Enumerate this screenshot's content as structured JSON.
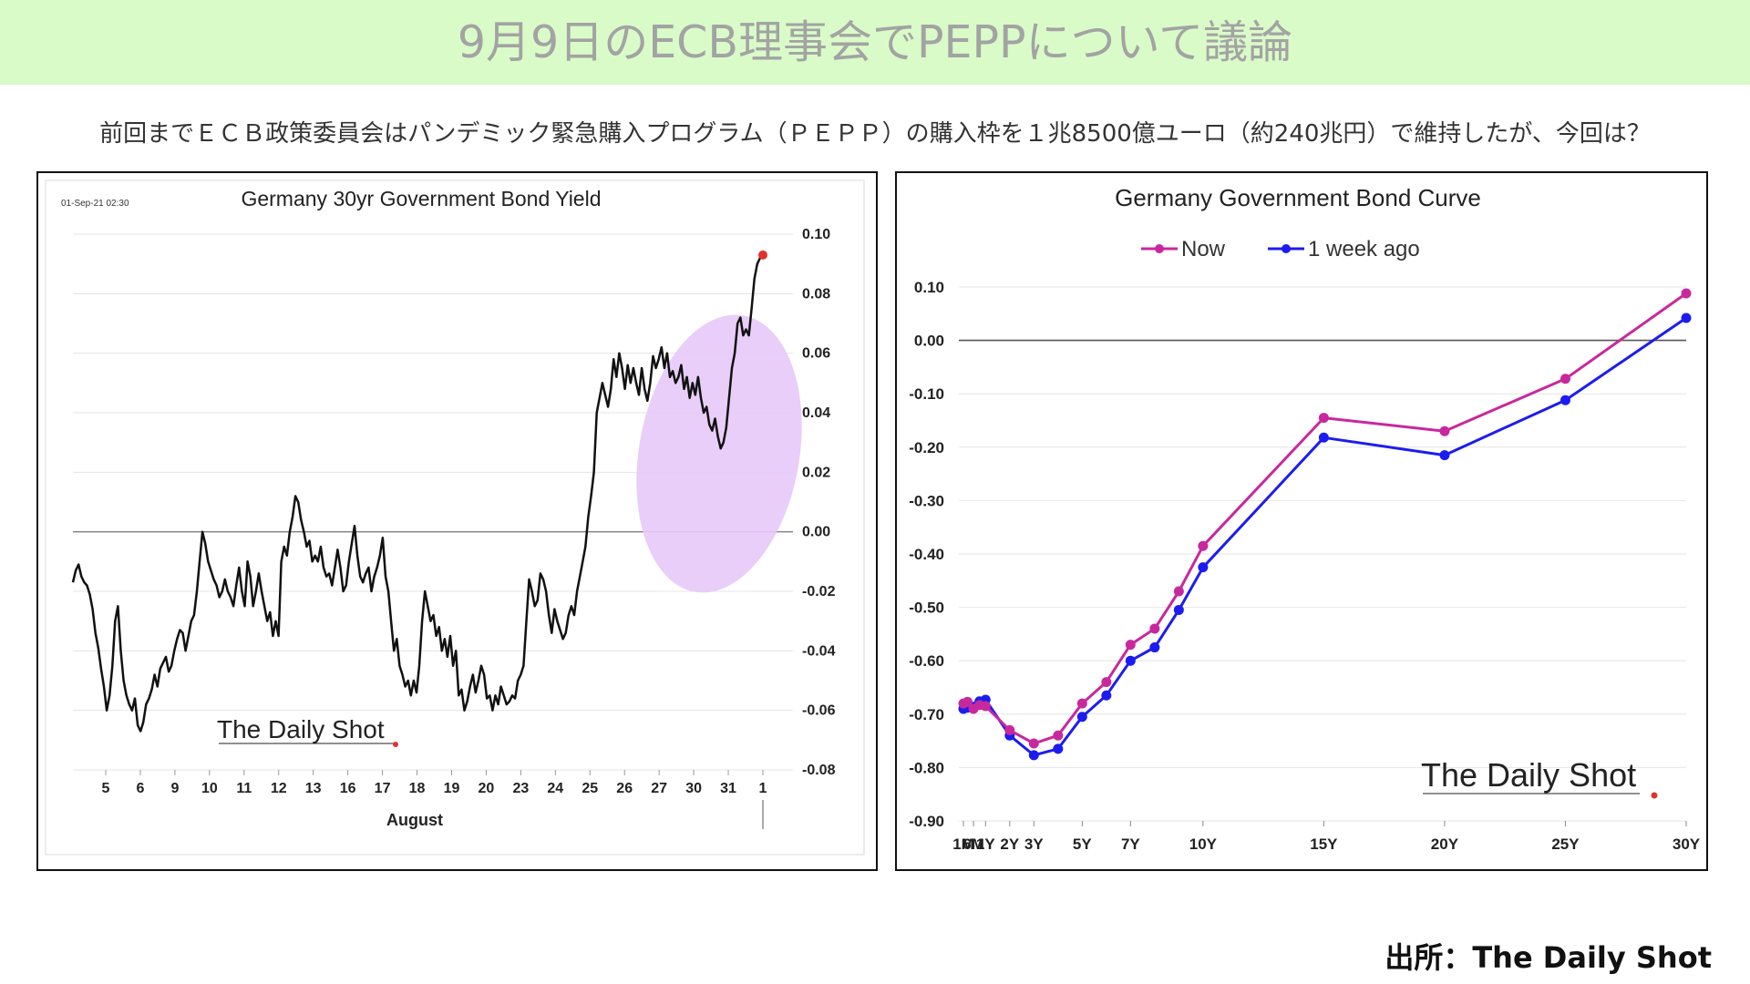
{
  "header": {
    "title": "9月9日のECB理事会でPEPPについて議論"
  },
  "subtitle": "前回までＥＣＢ政策委員会はパンデミック緊急購入プログラム（ＰＥＰＰ）の購入枠を１兆8500億ユーロ（約240兆円）で維持したが、今回は？",
  "source": "出所：The Daily Shot",
  "chart_data": [
    {
      "type": "line",
      "title": "Germany 30yr Government Bond Yield",
      "timestamp": "01-Sep-21 02:30",
      "xlabel": "August",
      "x_ticks": [
        "5",
        "6",
        "9",
        "10",
        "11",
        "12",
        "13",
        "16",
        "17",
        "18",
        "19",
        "20",
        "23",
        "24",
        "25",
        "26",
        "27",
        "30",
        "31",
        "1"
      ],
      "ylim": [
        -0.08,
        0.1
      ],
      "y_ticks": [
        "0.10",
        "0.08",
        "0.06",
        "0.04",
        "0.02",
        "0.00",
        "-0.02",
        "-0.04",
        "-0.06",
        "-0.08"
      ],
      "watermark": "The Daily Shot",
      "grid": true,
      "highlight": "last-points-ellipse",
      "line_color": "#111111",
      "highlight_color": "#e6c9f7",
      "endpoint_color": "#e0332e",
      "series": [
        {
          "values": [
            -0.017,
            -0.013,
            -0.011,
            -0.015,
            -0.017,
            -0.018,
            -0.021,
            -0.026,
            -0.034,
            -0.039,
            -0.046,
            -0.052,
            -0.06,
            -0.055,
            -0.045,
            -0.03,
            -0.025,
            -0.04,
            -0.05,
            -0.055,
            -0.058,
            -0.06,
            -0.056,
            -0.065,
            -0.067,
            -0.064,
            -0.058,
            -0.056,
            -0.053,
            -0.048,
            -0.052,
            -0.046,
            -0.044,
            -0.042,
            -0.047,
            -0.045,
            -0.04,
            -0.036,
            -0.033,
            -0.034,
            -0.04,
            -0.035,
            -0.03,
            -0.028,
            -0.02,
            -0.01,
            0.0,
            -0.004,
            -0.01,
            -0.013,
            -0.016,
            -0.018,
            -0.022,
            -0.02,
            -0.016,
            -0.02,
            -0.022,
            -0.025,
            -0.018,
            -0.012,
            -0.02,
            -0.025,
            -0.01,
            -0.015,
            -0.025,
            -0.02,
            -0.014,
            -0.02,
            -0.025,
            -0.03,
            -0.027,
            -0.035,
            -0.03,
            -0.035,
            -0.01,
            -0.005,
            -0.008,
            0.0,
            0.005,
            0.012,
            0.01,
            0.004,
            0.0,
            -0.005,
            -0.003,
            -0.01,
            -0.008,
            -0.01,
            -0.005,
            -0.012,
            -0.015,
            -0.014,
            -0.018,
            -0.012,
            -0.006,
            -0.012,
            -0.02,
            -0.018,
            -0.01,
            -0.004,
            0.002,
            -0.008,
            -0.015,
            -0.017,
            -0.014,
            -0.012,
            -0.02,
            -0.015,
            -0.012,
            -0.008,
            -0.002,
            -0.015,
            -0.02,
            -0.03,
            -0.04,
            -0.036,
            -0.045,
            -0.048,
            -0.052,
            -0.05,
            -0.055,
            -0.05,
            -0.054,
            -0.045,
            -0.03,
            -0.02,
            -0.025,
            -0.03,
            -0.028,
            -0.035,
            -0.032,
            -0.04,
            -0.036,
            -0.042,
            -0.035,
            -0.045,
            -0.04,
            -0.055,
            -0.053,
            -0.06,
            -0.057,
            -0.052,
            -0.048,
            -0.054,
            -0.05,
            -0.045,
            -0.048,
            -0.056,
            -0.055,
            -0.06,
            -0.055,
            -0.058,
            -0.052,
            -0.055,
            -0.058,
            -0.057,
            -0.055,
            -0.056,
            -0.05,
            -0.048,
            -0.045,
            -0.03,
            -0.016,
            -0.02,
            -0.025,
            -0.023,
            -0.014,
            -0.016,
            -0.02,
            -0.028,
            -0.034,
            -0.026,
            -0.03,
            -0.033,
            -0.036,
            -0.034,
            -0.028,
            -0.025,
            -0.028,
            -0.02,
            -0.015,
            -0.01,
            -0.005,
            0.005,
            0.012,
            0.02,
            0.04,
            0.045,
            0.05,
            0.046,
            0.042,
            0.048,
            0.058,
            0.052,
            0.06,
            0.055,
            0.048,
            0.056,
            0.05,
            0.055,
            0.05,
            0.046,
            0.055,
            0.048,
            0.044,
            0.05,
            0.059,
            0.055,
            0.058,
            0.062,
            0.055,
            0.06,
            0.052,
            0.054,
            0.05,
            0.052,
            0.056,
            0.048,
            0.052,
            0.045,
            0.05,
            0.046,
            0.052,
            0.045,
            0.04,
            0.042,
            0.036,
            0.034,
            0.038,
            0.032,
            0.028,
            0.03,
            0.035,
            0.045,
            0.055,
            0.06,
            0.07,
            0.072,
            0.066,
            0.068,
            0.066,
            0.075,
            0.085,
            0.09,
            0.092,
            0.093
          ]
        }
      ]
    },
    {
      "type": "line",
      "title": "Germany Government Bond Curve",
      "ylim": [
        -0.9,
        0.1
      ],
      "y_ticks": [
        "0.10",
        "0.00",
        "-0.10",
        "-0.20",
        "-0.30",
        "-0.40",
        "-0.50",
        "-0.60",
        "-0.70",
        "-0.80",
        "-0.90"
      ],
      "x_tick_labels": [
        "1M",
        "6M",
        "1Y",
        "2Y",
        "3Y",
        "5Y",
        "7Y",
        "10Y",
        "15Y",
        "20Y",
        "25Y",
        "30Y"
      ],
      "x_tick_maturities": [
        0.083,
        0.5,
        1,
        2,
        3,
        5,
        7,
        10,
        15,
        20,
        25,
        30
      ],
      "maturities_years": [
        0.083,
        0.25,
        0.5,
        0.75,
        1,
        2,
        3,
        4,
        5,
        6,
        7,
        8,
        9,
        10,
        15,
        20,
        25,
        30
      ],
      "legend_position": "top-center",
      "watermark": "The Daily Shot",
      "grid": true,
      "series": [
        {
          "name": "Now",
          "color": "#c8289d",
          "values": [
            -0.68,
            -0.677,
            -0.69,
            -0.683,
            -0.685,
            -0.73,
            -0.755,
            -0.74,
            -0.68,
            -0.64,
            -0.57,
            -0.54,
            -0.47,
            -0.385,
            -0.145,
            -0.17,
            -0.072,
            0.088
          ]
        },
        {
          "name": "1 week ago",
          "color": "#1c1cf0",
          "values": [
            -0.69,
            -0.688,
            -0.686,
            -0.676,
            -0.673,
            -0.74,
            -0.777,
            -0.765,
            -0.705,
            -0.665,
            -0.6,
            -0.575,
            -0.505,
            -0.425,
            -0.182,
            -0.215,
            -0.112,
            0.042
          ]
        }
      ]
    }
  ]
}
